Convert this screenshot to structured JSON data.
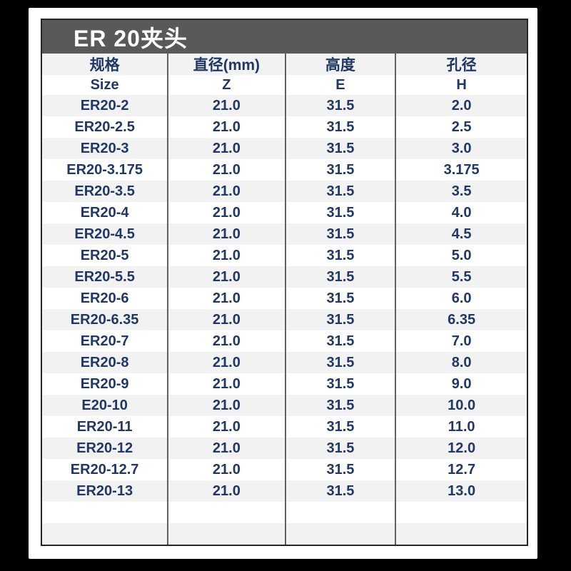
{
  "title": "ER 20夹头",
  "colors": {
    "canvas_bg": "#000000",
    "card_bg": "#ffffff",
    "table_border": "#262626",
    "title_bar_bg": "#595959",
    "title_text": "#ffffff",
    "cell_text": "#1f3864",
    "row_alt_bg": "#f2f2f2",
    "divider": "#616161"
  },
  "chart_data": {
    "type": "table",
    "title": "ER 20夹头",
    "header_row_1": [
      "规格",
      "直径(mm)",
      "高度",
      "孔径"
    ],
    "header_row_2": [
      "Size",
      "Z",
      "E",
      "H"
    ],
    "rows": [
      [
        "ER20-2",
        "21.0",
        "31.5",
        "2.0"
      ],
      [
        "ER20-2.5",
        "21.0",
        "31.5",
        "2.5"
      ],
      [
        "ER20-3",
        "21.0",
        "31.5",
        "3.0"
      ],
      [
        "ER20-3.175",
        "21.0",
        "31.5",
        "3.175"
      ],
      [
        "ER20-3.5",
        "21.0",
        "31.5",
        "3.5"
      ],
      [
        "ER20-4",
        "21.0",
        "31.5",
        "4.0"
      ],
      [
        "ER20-4.5",
        "21.0",
        "31.5",
        "4.5"
      ],
      [
        "ER20-5",
        "21.0",
        "31.5",
        "5.0"
      ],
      [
        "ER20-5.5",
        "21.0",
        "31.5",
        "5.5"
      ],
      [
        "ER20-6",
        "21.0",
        "31.5",
        "6.0"
      ],
      [
        "ER20-6.35",
        "21.0",
        "31.5",
        "6.35"
      ],
      [
        "ER20-7",
        "21.0",
        "31.5",
        "7.0"
      ],
      [
        "ER20-8",
        "21.0",
        "31.5",
        "8.0"
      ],
      [
        "ER20-9",
        "21.0",
        "31.5",
        "9.0"
      ],
      [
        "E20-10",
        "21.0",
        "31.5",
        "10.0"
      ],
      [
        "ER20-11",
        "21.0",
        "31.5",
        "11.0"
      ],
      [
        "ER20-12",
        "21.0",
        "31.5",
        "12.0"
      ],
      [
        "ER20-12.7",
        "21.0",
        "31.5",
        "12.7"
      ],
      [
        "ER20-13",
        "21.0",
        "31.5",
        "13.0"
      ]
    ],
    "trailing_empty_rows": 2,
    "layout_hints": {
      "first_data_row_shading": "alt",
      "shading_alternates": true,
      "grid_vertical_lines_only": true
    }
  }
}
